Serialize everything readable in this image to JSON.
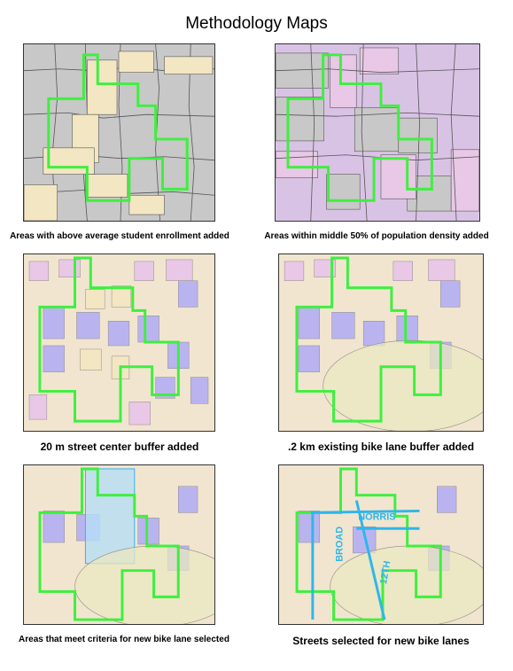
{
  "title": "Methodology Maps",
  "colors": {
    "study_area_outline": "#3ef03e",
    "bike_lane": "#2fb6ea",
    "gray_block": "#c8c8c8",
    "tan_block": "#f3e6c2",
    "pink_block": "#e8c8e6",
    "lilac_block": "#d9c3e5",
    "blue_block": "#b9b4f0",
    "buffer_fill": "#e9e7c0"
  },
  "panels": [
    {
      "id": "student-enrollment",
      "caption": "Areas with above average student enrollment added",
      "layers": [
        "tract-polygons",
        "enrollment-highlight",
        "study-area-outline"
      ]
    },
    {
      "id": "population-density",
      "caption": "Areas within middle 50% of population density added",
      "layers": [
        "tract-polygons",
        "density-highlight",
        "study-area-outline"
      ]
    },
    {
      "id": "street-buffer",
      "caption": "20 m street center buffer added",
      "layers": [
        "parcel-grid",
        "street-buffer",
        "study-area-outline"
      ]
    },
    {
      "id": "bike-lane-buffer",
      "caption": ".2 km existing bike lane buffer added",
      "layers": [
        "parcel-grid",
        "street-buffer",
        "bike-lane-buffer",
        "study-area-outline"
      ]
    },
    {
      "id": "criteria-selected",
      "caption": "Areas that meet criteria for new bike lane selected",
      "layers": [
        "parcel-grid",
        "bike-lane-buffer",
        "selected-streets-area",
        "study-area-outline"
      ]
    },
    {
      "id": "streets-selected",
      "caption": "Streets selected for new bike lanes",
      "street_labels": [
        "NORRIS",
        "BROAD",
        "12TH"
      ],
      "layers": [
        "parcel-grid",
        "bike-lane-buffer",
        "new-bike-lanes",
        "study-area-outline"
      ]
    }
  ]
}
